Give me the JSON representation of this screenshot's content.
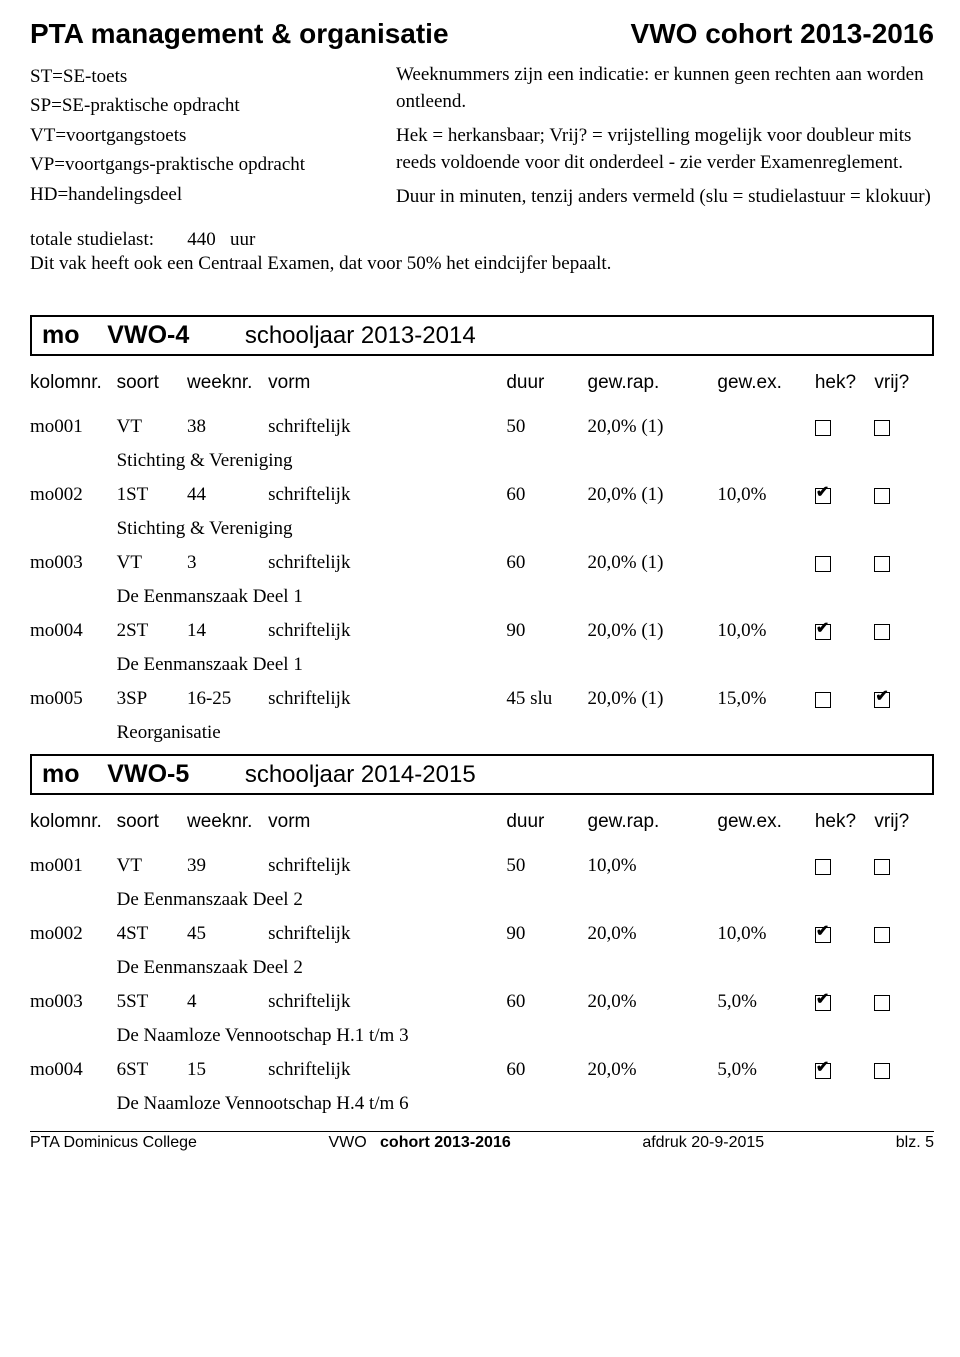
{
  "header": {
    "title_left": "PTA management & organisatie",
    "title_right": "VWO  cohort 2013-2016"
  },
  "legend_left": [
    "ST=SE-toets",
    "SP=SE-praktische opdracht",
    "VT=voortgangstoets",
    "VP=voortgangs-praktische opdracht",
    "HD=handelingsdeel"
  ],
  "legend_right": [
    "Weeknummers zijn een indicatie: er kunnen geen rechten aan worden ontleend.",
    "Hek = herkansbaar; Vrij? = vrijstelling mogelijk voor doubleur mits reeds voldoende voor dit onderdeel - zie verder Examenreglement.",
    "Duur in minuten, tenzij anders vermeld (slu = studielastuur = klokuur)"
  ],
  "studielast": {
    "label": "totale studielast:",
    "value": "440",
    "unit": "uur"
  },
  "centraal": "Dit vak heeft ook een Centraal Examen, dat voor 50% het eindcijfer bepaalt.",
  "columns": {
    "kolomnr": "kolomnr.",
    "soort": "soort",
    "weeknr": "weeknr.",
    "vorm": "vorm",
    "duur": "duur",
    "gewrap": "gew.rap.",
    "gewex": "gew.ex.",
    "hek": "hek?",
    "vrij": "vrij?"
  },
  "sections": [
    {
      "code": "mo",
      "level": "VWO-4",
      "schooljaar_label": "schooljaar 2013-2014",
      "rows": [
        {
          "kol": "mo001",
          "soort": "VT",
          "week": "38",
          "vorm": "schriftelijk",
          "duur": "50",
          "rap": "20,0% (1)",
          "ex": "",
          "hek": false,
          "vrij": false,
          "desc": "Stichting & Vereniging"
        },
        {
          "kol": "mo002",
          "soort": "1ST",
          "week": "44",
          "vorm": "schriftelijk",
          "duur": "60",
          "rap": "20,0% (1)",
          "ex": "10,0%",
          "hek": true,
          "vrij": false,
          "desc": "Stichting & Vereniging"
        },
        {
          "kol": "mo003",
          "soort": "VT",
          "week": "3",
          "vorm": "schriftelijk",
          "duur": "60",
          "rap": "20,0% (1)",
          "ex": "",
          "hek": false,
          "vrij": false,
          "desc": "De Eenmanszaak Deel 1"
        },
        {
          "kol": "mo004",
          "soort": "2ST",
          "week": "14",
          "vorm": "schriftelijk",
          "duur": "90",
          "rap": "20,0% (1)",
          "ex": "10,0%",
          "hek": true,
          "vrij": false,
          "desc": "De Eenmanszaak Deel 1"
        },
        {
          "kol": "mo005",
          "soort": "3SP",
          "week": "16-25",
          "vorm": "schriftelijk",
          "duur": "45 slu",
          "rap": "20,0% (1)",
          "ex": "15,0%",
          "hek": false,
          "vrij": true,
          "desc": "Reorganisatie"
        }
      ]
    },
    {
      "code": "mo",
      "level": "VWO-5",
      "schooljaar_label": "schooljaar 2014-2015",
      "rows": [
        {
          "kol": "mo001",
          "soort": "VT",
          "week": "39",
          "vorm": "schriftelijk",
          "duur": "50",
          "rap": "10,0%",
          "ex": "",
          "hek": false,
          "vrij": false,
          "desc": "De Eenmanszaak Deel 2"
        },
        {
          "kol": "mo002",
          "soort": "4ST",
          "week": "45",
          "vorm": "schriftelijk",
          "duur": "90",
          "rap": "20,0%",
          "ex": "10,0%",
          "hek": true,
          "vrij": false,
          "desc": "De Eenmanszaak Deel 2"
        },
        {
          "kol": "mo003",
          "soort": "5ST",
          "week": "4",
          "vorm": "schriftelijk",
          "duur": "60",
          "rap": "20,0%",
          "ex": "5,0%",
          "hek": true,
          "vrij": false,
          "desc": "De Naamloze Vennootschap H.1 t/m 3"
        },
        {
          "kol": "mo004",
          "soort": "6ST",
          "week": "15",
          "vorm": "schriftelijk",
          "duur": "60",
          "rap": "20,0%",
          "ex": "5,0%",
          "hek": true,
          "vrij": false,
          "desc": "De Naamloze Vennootschap H.4 t/m 6"
        }
      ]
    }
  ],
  "footer": {
    "left": "PTA Dominicus College",
    "center_prefix": "VWO",
    "center_bold": "cohort 2013-2016",
    "right1": "afdruk 20-9-2015",
    "right2": "blz.  5"
  }
}
